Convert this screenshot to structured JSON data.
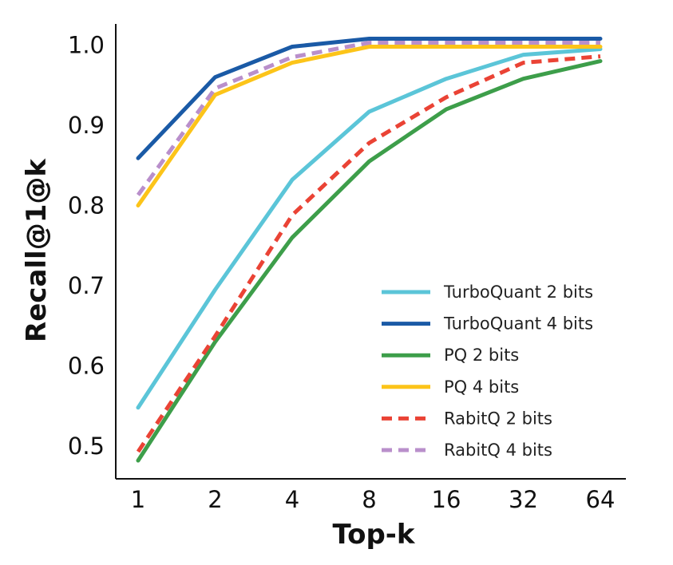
{
  "chart_data": {
    "type": "line",
    "title": "",
    "xlabel": "Top-k",
    "ylabel": "Recall@1@k",
    "x_scale": "log2",
    "categories": [
      "1",
      "2",
      "4",
      "8",
      "16",
      "32",
      "64"
    ],
    "ylim": [
      0.48,
      1.01
    ],
    "yticks": [
      "0.5",
      "0.6",
      "0.7",
      "0.8",
      "0.9",
      "1.0"
    ],
    "grid": false,
    "legend_position": "bottom-right",
    "series": [
      {
        "name": "TurboQuant 2 bits",
        "color": "#5bc5d8",
        "dash": "solid",
        "values": [
          0.548,
          0.695,
          0.832,
          0.917,
          0.958,
          0.988,
          0.995
        ]
      },
      {
        "name": "TurboQuant 4 bits",
        "color": "#1a5aa6",
        "dash": "solid",
        "values": [
          0.859,
          0.96,
          0.998,
          1.008,
          1.008,
          1.008,
          1.008
        ]
      },
      {
        "name": "PQ 2 bits",
        "color": "#3d9e4a",
        "dash": "solid",
        "values": [
          0.482,
          0.63,
          0.76,
          0.855,
          0.92,
          0.958,
          0.98
        ]
      },
      {
        "name": "PQ 4 bits",
        "color": "#fcc419",
        "dash": "solid",
        "values": [
          0.8,
          0.938,
          0.978,
          0.998,
          0.998,
          0.998,
          0.998
        ]
      },
      {
        "name": "RabitQ 2 bits",
        "color": "#ea4335",
        "dash": "dashed",
        "values": [
          0.493,
          0.637,
          0.788,
          0.878,
          0.935,
          0.978,
          0.986
        ]
      },
      {
        "name": "RabitQ 4 bits",
        "color": "#b98fcb",
        "dash": "dashed",
        "values": [
          0.813,
          0.946,
          0.985,
          1.003,
          1.003,
          1.003,
          1.003
        ]
      }
    ]
  }
}
